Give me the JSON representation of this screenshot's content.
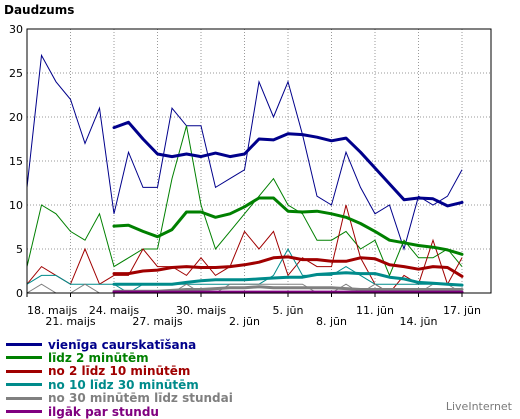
{
  "chart_data": {
    "type": "line",
    "title": "Daudzums",
    "ylim": [
      0,
      30
    ],
    "yticks": [
      0,
      5,
      10,
      15,
      20,
      25,
      30
    ],
    "grid": true,
    "x_count": 33,
    "x_tick_labels": [
      {
        "i": 0,
        "label": "18. maijs",
        "row": 1
      },
      {
        "i": 3,
        "label": "21. maijs",
        "row": 2
      },
      {
        "i": 6,
        "label": "24. maijs",
        "row": 1
      },
      {
        "i": 9,
        "label": "27. maijs",
        "row": 2
      },
      {
        "i": 12,
        "label": "30. maijs",
        "row": 1
      },
      {
        "i": 15,
        "label": "2. jūn",
        "row": 2
      },
      {
        "i": 18,
        "label": "5. jūn",
        "row": 1
      },
      {
        "i": 21,
        "label": "8. jūn",
        "row": 2
      },
      {
        "i": 24,
        "label": "11. jūn",
        "row": 1
      },
      {
        "i": 27,
        "label": "14. jūn",
        "row": 2
      },
      {
        "i": 30,
        "label": "17. jūn",
        "row": 1
      }
    ],
    "series": [
      {
        "name": "vienīga caurskatīšana",
        "color": "#00008b",
        "values": [
          12,
          27,
          24,
          22,
          17,
          21,
          9,
          16,
          12,
          12,
          21,
          19,
          19,
          12,
          13,
          14,
          24,
          20,
          24,
          18,
          11,
          10,
          16,
          12,
          9,
          10,
          5,
          11,
          10,
          11,
          14
        ]
      },
      {
        "name": "līdz 2 minūtēm",
        "color": "#008000",
        "values": [
          3,
          10,
          9,
          7,
          6,
          9,
          3,
          4,
          5,
          5,
          13,
          19,
          10,
          5,
          7,
          9,
          11,
          13,
          10,
          9,
          6,
          6,
          7,
          5,
          6,
          2,
          6,
          4,
          4,
          5,
          3
        ]
      },
      {
        "name": "no 2 līdz 10 minūtēm",
        "color": "#a00000",
        "values": [
          1,
          3,
          2,
          1,
          5,
          1,
          2,
          2,
          5,
          3,
          3,
          2,
          4,
          2,
          3,
          7,
          5,
          7,
          2,
          4,
          3,
          3,
          10,
          4,
          1,
          0,
          2,
          1,
          6,
          1,
          4
        ]
      },
      {
        "name": "no 10 līdz 30 minūtēm",
        "color": "#008b8b",
        "values": [
          1,
          2,
          2,
          1,
          1,
          1,
          1,
          0,
          1,
          1,
          1,
          1,
          1,
          1,
          1,
          1,
          1,
          2,
          5,
          2,
          2,
          2,
          3,
          2,
          1,
          1,
          1,
          1,
          1,
          1,
          1
        ]
      },
      {
        "name": "no 30 minūtēm līdz stundai",
        "color": "#808080",
        "values": [
          0,
          1,
          0,
          0,
          1,
          0,
          0,
          0,
          0,
          0,
          0,
          1,
          0,
          0,
          1,
          1,
          1,
          1,
          1,
          1,
          0,
          0,
          1,
          0,
          1,
          0,
          0,
          0,
          1,
          1,
          0
        ]
      },
      {
        "name": "ilgāk par stundu",
        "color": "#800080",
        "values": [
          0,
          0,
          0,
          0,
          0,
          0,
          0,
          0,
          0,
          0,
          0,
          0,
          0,
          0,
          0,
          0,
          0,
          0,
          0,
          0,
          0,
          0,
          0,
          0,
          0,
          0,
          0,
          0,
          0,
          0,
          0
        ]
      }
    ],
    "moving_averages": [
      {
        "color": "#00008b",
        "start": 6,
        "values": [
          18.8,
          19.4,
          17.5,
          15.8,
          15.5,
          15.8,
          15.5,
          15.9,
          15.5,
          15.8,
          17.5,
          17.4,
          18.1,
          18.0,
          17.7,
          17.3,
          17.6,
          16.0,
          14.2,
          12.4,
          10.6,
          10.8,
          10.7,
          9.9,
          10.3
        ]
      },
      {
        "color": "#008000",
        "start": 6,
        "values": [
          7.6,
          7.7,
          7.0,
          6.4,
          7.2,
          9.2,
          9.2,
          8.6,
          9.0,
          9.8,
          10.8,
          10.8,
          9.3,
          9.2,
          9.3,
          9.0,
          8.6,
          7.9,
          7.0,
          6.0,
          5.7,
          5.4,
          5.2,
          4.9,
          4.4
        ]
      },
      {
        "color": "#a00000",
        "start": 6,
        "values": [
          2.2,
          2.2,
          2.5,
          2.6,
          2.9,
          3.0,
          2.9,
          2.9,
          3.0,
          3.2,
          3.5,
          4.0,
          4.1,
          3.8,
          3.8,
          3.6,
          3.6,
          4.0,
          3.9,
          3.2,
          3.0,
          2.7,
          3.0,
          2.9,
          1.9
        ]
      },
      {
        "color": "#008b8b",
        "start": 6,
        "values": [
          1.0,
          1.0,
          1.0,
          1.0,
          1.0,
          1.2,
          1.4,
          1.5,
          1.5,
          1.5,
          1.6,
          1.7,
          1.8,
          1.8,
          2.1,
          2.2,
          2.3,
          2.2,
          2.2,
          1.8,
          1.6,
          1.2,
          1.1,
          1.0,
          0.9
        ]
      },
      {
        "color": "#808080",
        "start": 6,
        "values": [
          0.2,
          0.2,
          0.2,
          0.2,
          0.3,
          0.4,
          0.4,
          0.5,
          0.6,
          0.6,
          0.7,
          0.6,
          0.6,
          0.6,
          0.6,
          0.6,
          0.5,
          0.4,
          0.4,
          0.4,
          0.4,
          0.4,
          0.4,
          0.4,
          0.4
        ]
      },
      {
        "color": "#800080",
        "start": 6,
        "values": [
          0.1,
          0.1,
          0.1,
          0.1,
          0.1,
          0.1,
          0.1,
          0.1,
          0.1,
          0.1,
          0.1,
          0.1,
          0.1,
          0.1,
          0.1,
          0.1,
          0.1,
          0.1,
          0.1,
          0.1,
          0.1,
          0.1,
          0.1,
          0.1,
          0.1
        ]
      }
    ]
  },
  "branding": "LiveInternet"
}
